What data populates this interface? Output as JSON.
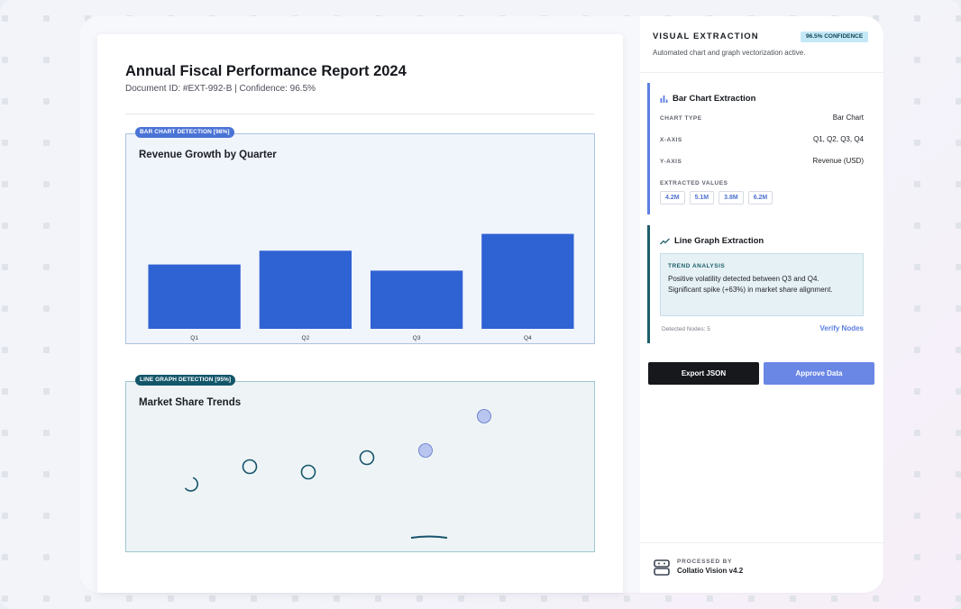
{
  "document": {
    "title": "Annual Fiscal Performance Report 2024",
    "meta": "Document ID: #EXT-992-B | Confidence: 96.5%"
  },
  "bar_region": {
    "badge": "BAR CHART DETECTION [98%]",
    "title": "Revenue Growth by Quarter"
  },
  "line_region": {
    "badge": "LINE GRAPH DETECTION [95%]",
    "title": "Market Share Trends"
  },
  "chart_data": [
    {
      "type": "bar",
      "title": "Revenue Growth by Quarter",
      "categories": [
        "Q1",
        "Q2",
        "Q3",
        "Q4"
      ],
      "values": [
        4.2,
        5.1,
        3.8,
        6.2
      ],
      "ylim": [
        0,
        10
      ],
      "color": "#2f62d3"
    },
    {
      "type": "scatter",
      "title": "Market Share Trends",
      "points": [
        {
          "x": 1,
          "y": 3.0,
          "style": "partial"
        },
        {
          "x": 2,
          "y": 4.0,
          "style": "open"
        },
        {
          "x": 3,
          "y": 3.7,
          "style": "open"
        },
        {
          "x": 4,
          "y": 4.5,
          "style": "open"
        },
        {
          "x": 5,
          "y": 4.9,
          "style": "filled"
        },
        {
          "x": 6,
          "y": 6.8,
          "style": "filled"
        }
      ],
      "color": "#16546a",
      "accent": "#b8c6ef"
    }
  ],
  "panel": {
    "heading": "VISUAL EXTRACTION",
    "confidence": "96.5% CONFIDENCE",
    "subtitle": "Automated chart and graph vectorization active.",
    "bar_card": {
      "title": "Bar Chart Extraction",
      "icon": "bar-chart-icon",
      "rows": [
        {
          "label": "CHART TYPE",
          "value": "Bar Chart"
        },
        {
          "label": "X-AXIS",
          "value": "Q1, Q2, Q3, Q4"
        },
        {
          "label": "Y-AXIS",
          "value": "Revenue (USD)"
        }
      ],
      "values_label": "EXTRACTED VALUES",
      "values": [
        "4.2M",
        "5.1M",
        "3.8M",
        "6.2M"
      ]
    },
    "line_card": {
      "title": "Line Graph Extraction",
      "icon": "trend-line-icon",
      "trend_heading": "TREND ANALYSIS",
      "trend_text": "Positive volatility detected between Q3 and Q4. Significant spike (+63%) in market share alignment.",
      "detected": "Detected Nodes: 5",
      "verify": "Verify Nodes"
    },
    "export_label": "Export JSON",
    "approve_label": "Approve Data",
    "processed_label": "PROCESSED BY",
    "processed_name": "Collatio Vision v4.2"
  }
}
